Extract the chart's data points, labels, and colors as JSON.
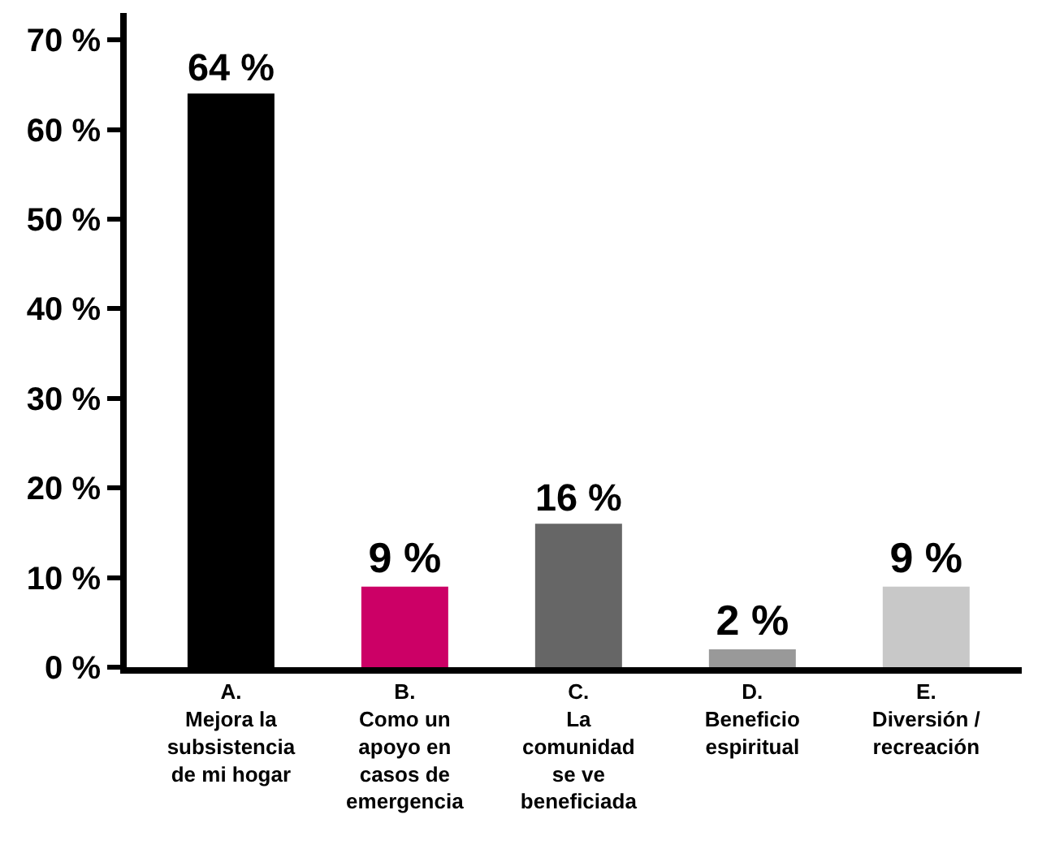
{
  "chart_data": {
    "type": "bar",
    "categories": [
      "A.\nMejora la\nsubsistencia\nde mi hogar",
      "B.\nComo un\napoyo en\ncasos de\nemergencia",
      "C.\nLa\ncomunidad\nse ve\nbeneficiada",
      "D.\nBeneficio\nespiritual",
      "E.\nDiversión /\nrecreación"
    ],
    "values": [
      64,
      9,
      16,
      2,
      9
    ],
    "colors": [
      "#000000",
      "#cc0066",
      "#666666",
      "#999999",
      "#c8c8c8"
    ],
    "value_labels": [
      "64 %",
      "9 %",
      "16 %",
      "2 %",
      "9 %"
    ],
    "ylim": [
      0,
      73
    ],
    "yticks": [
      {
        "value": 0,
        "label": "0 %"
      },
      {
        "value": 10,
        "label": "10 %"
      },
      {
        "value": 20,
        "label": "20 %"
      },
      {
        "value": 30,
        "label": "30 %"
      },
      {
        "value": 40,
        "label": "40 %"
      },
      {
        "value": 50,
        "label": "50 %"
      },
      {
        "value": 60,
        "label": "60 %"
      },
      {
        "value": 70,
        "label": "70 %"
      }
    ]
  }
}
